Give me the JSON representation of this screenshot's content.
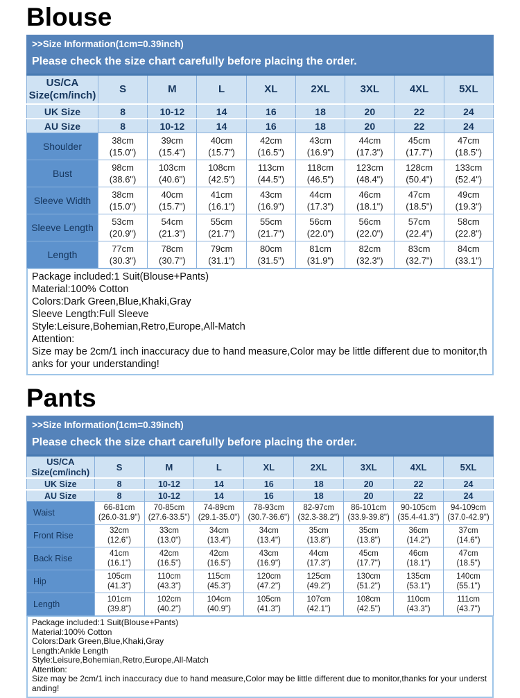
{
  "colors": {
    "banner_bg": "#5583ba",
    "table_header_bg": "#cfe2f3",
    "row_label_bg": "#5d92cd",
    "border_blue": "#8ab1dc",
    "navy_text": "#17375e"
  },
  "sections": [
    {
      "id": "blouse",
      "title": "Blouse",
      "banner": {
        "line1": ">>Size Information(1cm=0.39inch)",
        "line2": "Please check the size chart carefully before placing the order."
      },
      "table": {
        "corner_label_line1": "US/CA",
        "corner_label_line2": "Size(cm/inch)",
        "sizes": [
          "S",
          "M",
          "L",
          "XL",
          "2XL",
          "3XL",
          "4XL",
          "5XL"
        ],
        "extra_rows": [
          {
            "label": "UK Size",
            "values": [
              "8",
              "10-12",
              "14",
              "16",
              "18",
              "20",
              "22",
              "24"
            ]
          },
          {
            "label": "AU Size",
            "values": [
              "8",
              "10-12",
              "14",
              "16",
              "18",
              "20",
              "22",
              "24"
            ]
          }
        ],
        "measure_rows": [
          {
            "label": "Shoulder",
            "cells": [
              [
                "38cm",
                "(15.0\")"
              ],
              [
                "39cm",
                "(15.4\")"
              ],
              [
                "40cm",
                "(15.7\")"
              ],
              [
                "42cm",
                "(16.5\")"
              ],
              [
                "43cm",
                "(16.9\")"
              ],
              [
                "44cm",
                "(17.3\")"
              ],
              [
                "45cm",
                "(17.7\")"
              ],
              [
                "47cm",
                "(18.5\")"
              ]
            ]
          },
          {
            "label": "Bust",
            "cells": [
              [
                "98cm",
                "(38.6\")"
              ],
              [
                "103cm",
                "(40.6\")"
              ],
              [
                "108cm",
                "(42.5\")"
              ],
              [
                "113cm",
                "(44.5\")"
              ],
              [
                "118cm",
                "(46.5\")"
              ],
              [
                "123cm",
                "(48.4\")"
              ],
              [
                "128cm",
                "(50.4\")"
              ],
              [
                "133cm",
                "(52.4\")"
              ]
            ]
          },
          {
            "label": "Sleeve Width",
            "cells": [
              [
                "38cm",
                "(15.0\")"
              ],
              [
                "40cm",
                "(15.7\")"
              ],
              [
                "41cm",
                "(16.1\")"
              ],
              [
                "43cm",
                "(16.9\")"
              ],
              [
                "44cm",
                "(17.3\")"
              ],
              [
                "46cm",
                "(18.1\")"
              ],
              [
                "47cm",
                "(18.5\")"
              ],
              [
                "49cm",
                "(19.3\")"
              ]
            ]
          },
          {
            "label": "Sleeve Length",
            "cells": [
              [
                "53cm",
                "(20.9\")"
              ],
              [
                "54cm",
                "(21.3\")"
              ],
              [
                "55cm",
                "(21.7\")"
              ],
              [
                "55cm",
                "(21.7\")"
              ],
              [
                "56cm",
                "(22.0\")"
              ],
              [
                "56cm",
                "(22.0\")"
              ],
              [
                "57cm",
                "(22.4\")"
              ],
              [
                "58cm",
                "(22.8\")"
              ]
            ]
          },
          {
            "label": "Length",
            "cells": [
              [
                "77cm",
                "(30.3\")"
              ],
              [
                "78cm",
                "(30.7\")"
              ],
              [
                "79cm",
                "(31.1\")"
              ],
              [
                "80cm",
                "(31.5\")"
              ],
              [
                "81cm",
                "(31.9\")"
              ],
              [
                "82cm",
                "(32.3\")"
              ],
              [
                "83cm",
                "(32.7\")"
              ],
              [
                "84cm",
                "(33.1\")"
              ]
            ]
          }
        ]
      },
      "info_lines": [
        "Package included:1 Suit(Blouse+Pants)",
        "Material:100% Cotton",
        "Colors:Dark Green,Blue,Khaki,Gray",
        "Sleeve Length:Full Sleeve",
        "Style:Leisure,Bohemian,Retro,Europe,All-Match",
        "Attention:",
        "Size may be 2cm/1 inch inaccuracy due to hand measure,Color may be little different due to monitor,thanks for your understanding!"
      ]
    },
    {
      "id": "pants",
      "title": "Pants",
      "banner": {
        "line1": ">>Size Information(1cm=0.39inch)",
        "line2": "Please check the size chart carefully before placing the order."
      },
      "table": {
        "corner_label_line1": "US/CA",
        "corner_label_line2": "Size(cm/inch)",
        "sizes": [
          "S",
          "M",
          "L",
          "XL",
          "2XL",
          "3XL",
          "4XL",
          "5XL"
        ],
        "extra_rows": [
          {
            "label": "UK Size",
            "values": [
              "8",
              "10-12",
              "14",
              "16",
              "18",
              "20",
              "22",
              "24"
            ]
          },
          {
            "label": "AU Size",
            "values": [
              "8",
              "10-12",
              "14",
              "16",
              "18",
              "20",
              "22",
              "24"
            ]
          }
        ],
        "measure_rows": [
          {
            "label": "Waist",
            "cells": [
              [
                "66-81cm",
                "(26.0-31.9\")"
              ],
              [
                "70-85cm",
                "(27.6-33.5\")"
              ],
              [
                "74-89cm",
                "(29.1-35.0\")"
              ],
              [
                "78-93cm",
                "(30.7-36.6\")"
              ],
              [
                "82-97cm",
                "(32.3-38.2\")"
              ],
              [
                "86-101cm",
                "(33.9-39.8\")"
              ],
              [
                "90-105cm",
                "(35.4-41.3\")"
              ],
              [
                "94-109cm",
                "(37.0-42.9\")"
              ]
            ]
          },
          {
            "label": "Front Rise",
            "cells": [
              [
                "32cm",
                "(12.6\")"
              ],
              [
                "33cm",
                "(13.0\")"
              ],
              [
                "34cm",
                "(13.4\")"
              ],
              [
                "34cm",
                "(13.4\")"
              ],
              [
                "35cm",
                "(13.8\")"
              ],
              [
                "35cm",
                "(13.8\")"
              ],
              [
                "36cm",
                "(14.2\")"
              ],
              [
                "37cm",
                "(14.6\")"
              ]
            ]
          },
          {
            "label": "Back Rise",
            "cells": [
              [
                "41cm",
                "(16.1\")"
              ],
              [
                "42cm",
                "(16.5\")"
              ],
              [
                "42cm",
                "(16.5\")"
              ],
              [
                "43cm",
                "(16.9\")"
              ],
              [
                "44cm",
                "(17.3\")"
              ],
              [
                "45cm",
                "(17.7\")"
              ],
              [
                "46cm",
                "(18.1\")"
              ],
              [
                "47cm",
                "(18.5\")"
              ]
            ]
          },
          {
            "label": "Hip",
            "cells": [
              [
                "105cm",
                "(41.3\")"
              ],
              [
                "110cm",
                "(43.3\")"
              ],
              [
                "115cm",
                "(45.3\")"
              ],
              [
                "120cm",
                "(47.2\")"
              ],
              [
                "125cm",
                "(49.2\")"
              ],
              [
                "130cm",
                "(51.2\")"
              ],
              [
                "135cm",
                "(53.1\")"
              ],
              [
                "140cm",
                "(55.1\")"
              ]
            ]
          },
          {
            "label": "Length",
            "cells": [
              [
                "101cm",
                "(39.8\")"
              ],
              [
                "102cm",
                "(40.2\")"
              ],
              [
                "104cm",
                "(40.9\")"
              ],
              [
                "105cm",
                "(41.3\")"
              ],
              [
                "107cm",
                "(42.1\")"
              ],
              [
                "108cm",
                "(42.5\")"
              ],
              [
                "110cm",
                "(43.3\")"
              ],
              [
                "111cm",
                "(43.7\")"
              ]
            ]
          }
        ]
      },
      "info_lines": [
        "Package included:1 Suit(Blouse+Pants)",
        "Material:100% Cotton",
        "Colors:Dark Green,Blue,Khaki,Gray",
        "Length:Ankle Length",
        "Style:Leisure,Bohemian,Retro,Europe,All-Match",
        "Attention:",
        "Size may be 2cm/1 inch inaccuracy due to hand measure,Color may be little different due to monitor,thanks for your understanding!"
      ]
    }
  ]
}
